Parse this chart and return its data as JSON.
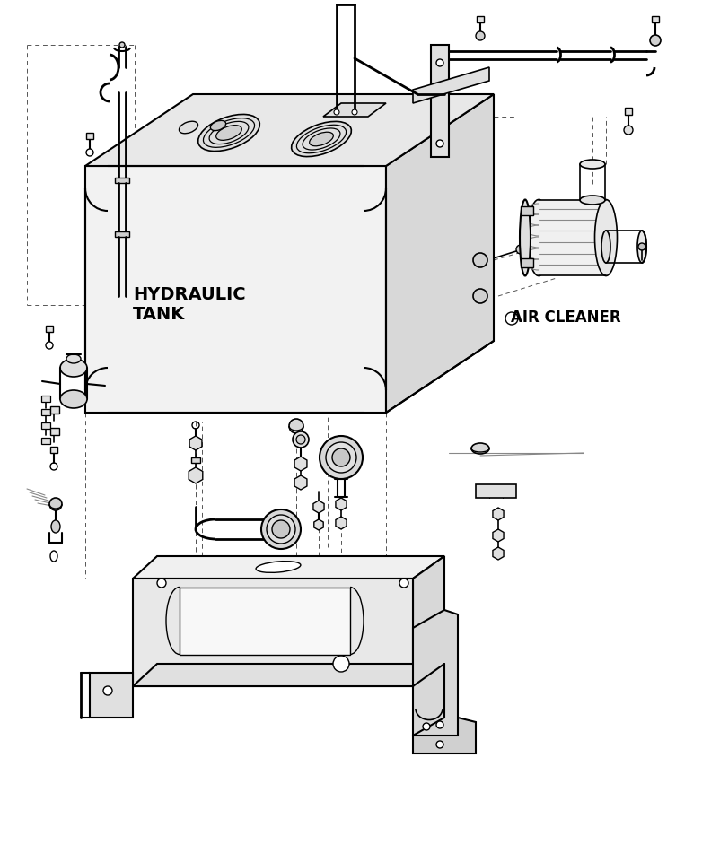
{
  "bg_color": "#ffffff",
  "line_color": "#000000",
  "hydraulic_tank_label": "HYDRAULIC\nTANK",
  "air_cleaner_label": "AIR CLEANER",
  "figsize": [
    7.92,
    9.61
  ],
  "dpi": 100
}
